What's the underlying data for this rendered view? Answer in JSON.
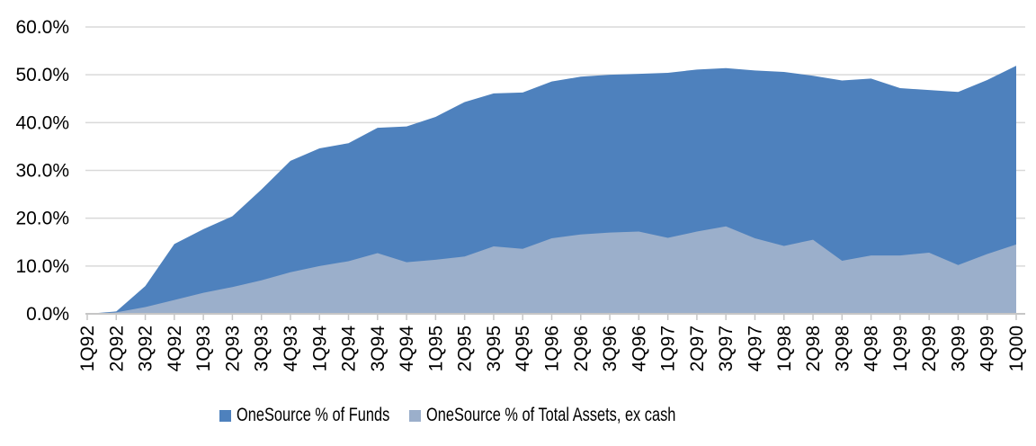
{
  "chart_data": {
    "type": "area",
    "title": "",
    "xlabel": "",
    "ylabel": "",
    "categories": [
      "1Q92",
      "2Q92",
      "3Q92",
      "4Q92",
      "1Q93",
      "2Q93",
      "3Q93",
      "4Q93",
      "1Q94",
      "2Q94",
      "3Q94",
      "4Q94",
      "1Q95",
      "2Q95",
      "3Q95",
      "4Q95",
      "1Q96",
      "2Q96",
      "3Q96",
      "4Q96",
      "1Q97",
      "2Q97",
      "3Q97",
      "4Q97",
      "1Q98",
      "2Q98",
      "3Q98",
      "4Q98",
      "1Q99",
      "2Q99",
      "3Q99",
      "4Q99",
      "1Q00"
    ],
    "series": [
      {
        "name": "OneSource % of Funds",
        "color": "#4E81BD",
        "values": [
          0.0,
          0.5,
          5.8,
          14.6,
          17.7,
          20.4,
          26.0,
          32.0,
          34.6,
          35.7,
          38.9,
          39.2,
          41.2,
          44.3,
          46.1,
          46.3,
          48.6,
          49.6,
          50.0,
          50.2,
          50.4,
          51.1,
          51.4,
          50.9,
          50.6,
          49.8,
          48.8,
          49.2,
          47.2,
          46.8,
          46.4,
          48.9,
          51.9
        ]
      },
      {
        "name": "OneSource % of Total Assets, ex cash",
        "color": "#9BAFCB",
        "values": [
          0.0,
          0.3,
          1.4,
          2.9,
          4.4,
          5.6,
          7.0,
          8.7,
          10.0,
          11.0,
          12.7,
          10.8,
          11.3,
          12.0,
          14.1,
          13.6,
          15.8,
          16.6,
          17.0,
          17.2,
          15.9,
          17.2,
          18.3,
          15.8,
          14.2,
          15.5,
          11.1,
          12.2,
          12.2,
          12.8,
          10.2,
          12.5,
          14.5
        ]
      }
    ],
    "overlap": "overlaid, second series drawn in front of first (not stacked)",
    "ylim": [
      0,
      60
    ],
    "ytick_values": [
      0,
      10,
      20,
      30,
      40,
      50,
      60
    ],
    "ytick_labels": [
      "0.0%",
      "10.0%",
      "20.0%",
      "30.0%",
      "40.0%",
      "50.0%",
      "60.0%"
    ],
    "grid": "horizontal",
    "legend_position": "bottom",
    "gridline_color": "#D9D9D9",
    "axis_color": "#C6C6C6",
    "text_color": "#000000",
    "background_color": "#FFFFFF"
  }
}
